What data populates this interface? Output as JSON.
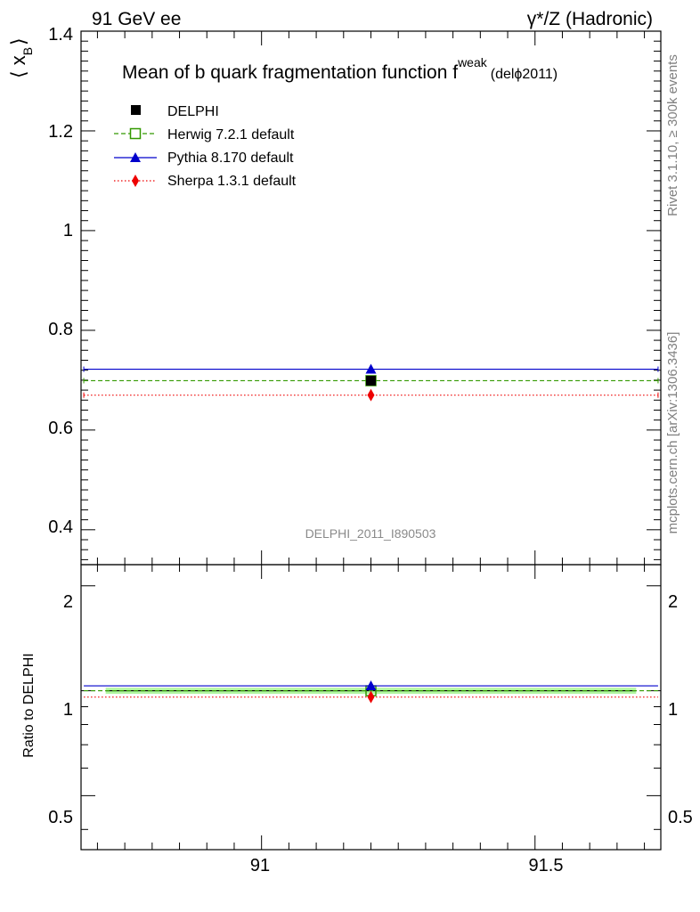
{
  "header": {
    "energy": "91 GeV ee",
    "process": "γ*/Z (Hadronic)"
  },
  "side_labels": {
    "rivet": "Rivet 3.1.10, ≥ 300k events",
    "mcplots": "mcplots.cern.ch [arXiv:1306.3436]"
  },
  "chart_data": [
    {
      "type": "scatter",
      "title_main": "Mean of b quark fragmentation function f",
      "title_sup": "weak",
      "title_suffix": "(delϕ2011)",
      "ylabel_main": "⟨ x",
      "ylabel_sub": "B",
      "ylabel_close": "⟩",
      "watermark": "DELPHI_2011_I890503",
      "ylim": [
        0.33,
        1.4
      ],
      "xlim": [
        90.67,
        91.73
      ],
      "y_ticks": [
        "0.4",
        "0.6",
        "0.8",
        "1",
        "1.2",
        "1.4"
      ],
      "legend_position": "top-left",
      "series": [
        {
          "name": "DELPHI",
          "x": [
            91.2
          ],
          "y": [
            0.699
          ],
          "xerr": [
            0,
            0
          ],
          "color": "#000000",
          "marker": "square-filled",
          "line": "none"
        },
        {
          "name": "Herwig 7.2.1 default",
          "x": [
            91.2
          ],
          "y": [
            0.699
          ],
          "xerr": [
            0.525,
            0.525
          ],
          "color": "#339900",
          "marker": "square-open",
          "line": "dashed"
        },
        {
          "name": "Pythia 8.170 default",
          "x": [
            91.2
          ],
          "y": [
            0.722
          ],
          "xerr": [
            0.525,
            0.525
          ],
          "color": "#0000cc",
          "marker": "triangle",
          "line": "solid"
        },
        {
          "name": "Sherpa 1.3.1 default",
          "x": [
            91.2
          ],
          "y": [
            0.67
          ],
          "xerr": [
            0.525,
            0.525
          ],
          "color": "#ee0000",
          "marker": "diamond",
          "line": "dotted"
        }
      ]
    },
    {
      "type": "scatter",
      "ylabel": "Ratio to DELPHI",
      "ylim": [
        0.35,
        2.3
      ],
      "xlim": [
        90.67,
        91.73
      ],
      "y_ticks": [
        "0.5",
        "1",
        "2"
      ],
      "x_ticks": [
        "91",
        "91.5"
      ],
      "band": {
        "low": 0.98,
        "high": 1.02,
        "color": "#b2f7a1"
      },
      "series": [
        {
          "name": "Herwig 7.2.1 default",
          "y": [
            1.0
          ]
        },
        {
          "name": "Pythia 8.170 default",
          "y": [
            1.033
          ]
        },
        {
          "name": "Sherpa 1.3.1 default",
          "y": [
            0.959
          ]
        }
      ]
    }
  ]
}
